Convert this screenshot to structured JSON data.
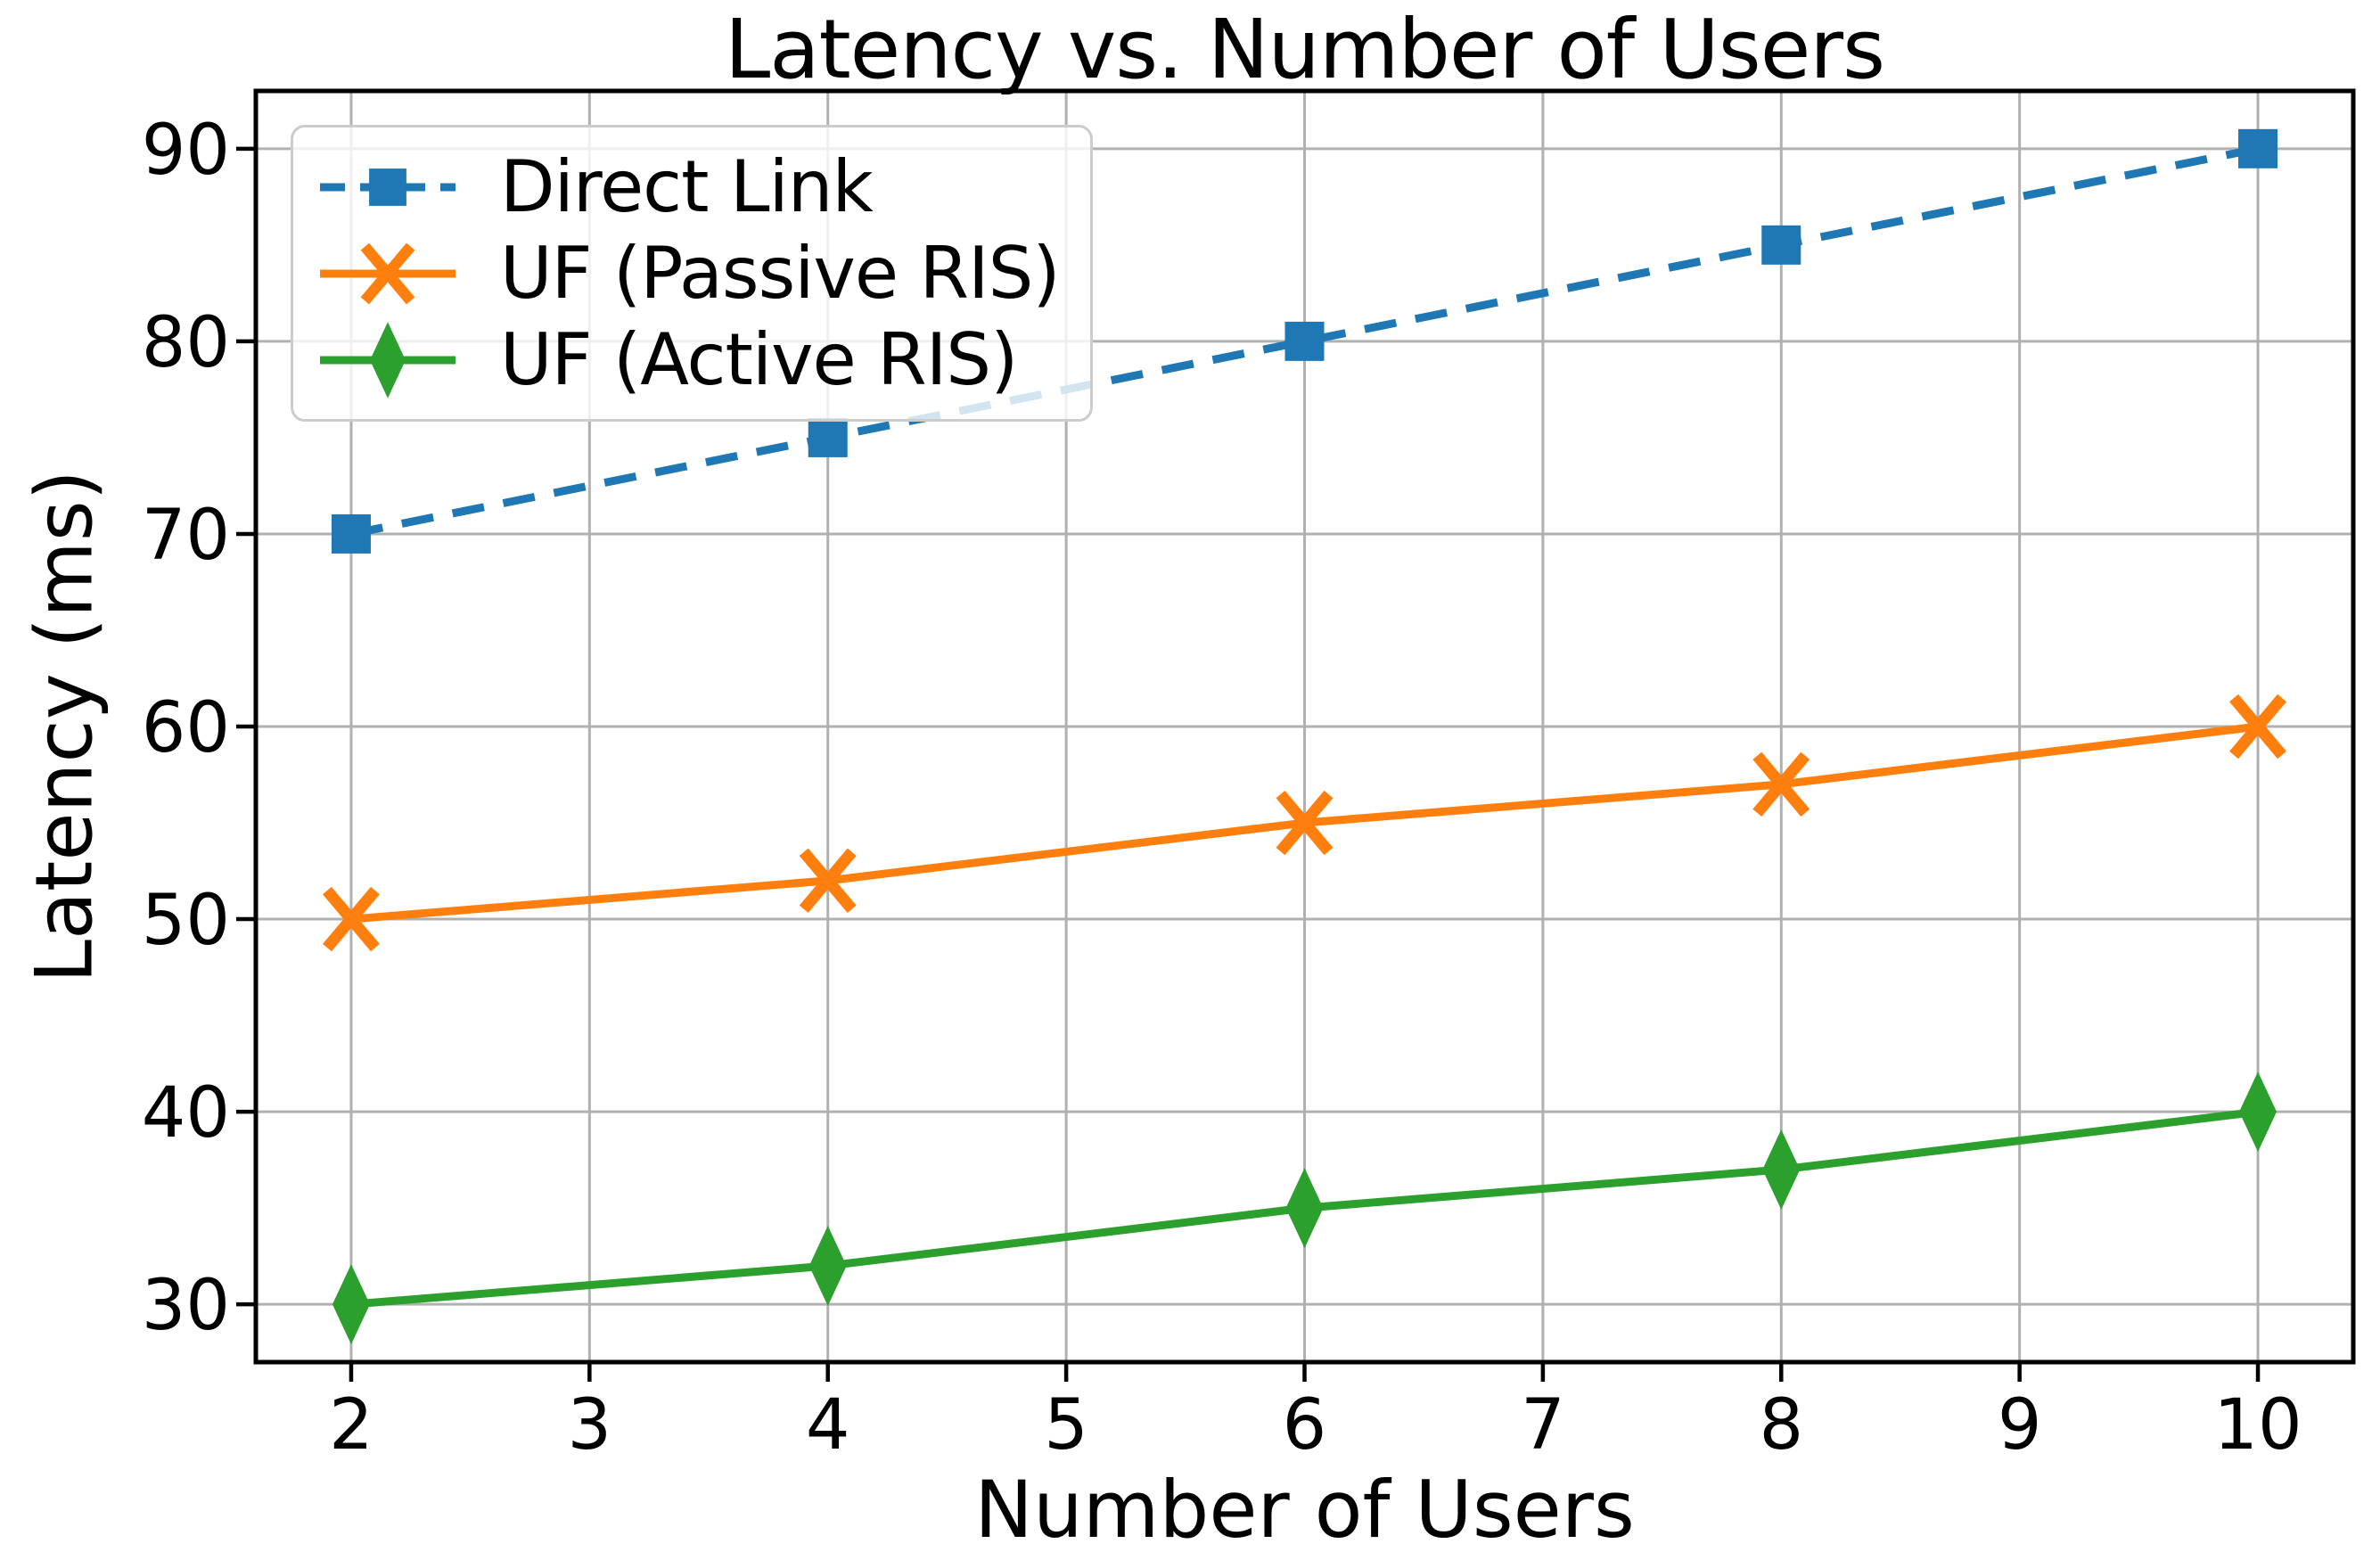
{
  "chart_data": {
    "type": "line",
    "title": "Latency vs. Number of Users",
    "xlabel": "Number of Users",
    "ylabel": "Latency (ms)",
    "x": [
      2,
      4,
      6,
      8,
      10
    ],
    "series": [
      {
        "name": "Direct Link",
        "values": [
          70,
          75,
          80,
          85,
          90
        ],
        "color": "#1f77b4",
        "linestyle": "dashed",
        "marker": "square"
      },
      {
        "name": "UF (Passive RIS)",
        "values": [
          50,
          52,
          55,
          57,
          60
        ],
        "color": "#ff7f0e",
        "linestyle": "solid",
        "marker": "x"
      },
      {
        "name": "UF (Active RIS)",
        "values": [
          30,
          32,
          35,
          37,
          40
        ],
        "color": "#2ca02c",
        "linestyle": "solid",
        "marker": "diamond"
      }
    ],
    "xticks": [
      2,
      3,
      4,
      5,
      6,
      7,
      8,
      9,
      10
    ],
    "yticks": [
      30,
      40,
      50,
      60,
      70,
      80,
      90
    ],
    "xlim": [
      1.6,
      10.4
    ],
    "ylim": [
      27,
      93
    ],
    "grid": true,
    "grid_color": "#b0b0b0",
    "axis_color": "#000000",
    "tick_label_color": "#000000",
    "background": "#ffffff",
    "legend_position": "upper-left"
  }
}
